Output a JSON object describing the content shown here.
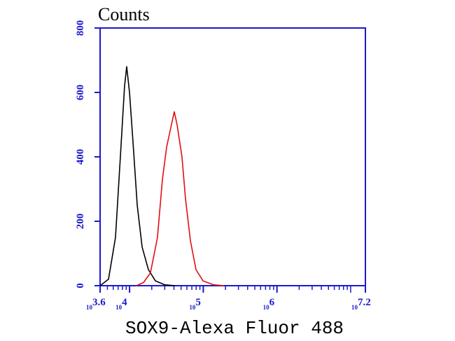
{
  "chart_data": {
    "type": "line",
    "title": "Counts",
    "x_label": "SOX9-Alexa Fluor 488",
    "xscale": "log",
    "xlim": [
      3981.07,
      15848932
    ],
    "xticks": [
      {
        "value": 3981.07,
        "base": "10",
        "exponent": "3.6"
      },
      {
        "value": 10000,
        "base": "10",
        "exponent": "4"
      },
      {
        "value": 100000,
        "base": "10",
        "exponent": "5"
      },
      {
        "value": 1000000,
        "base": "10",
        "exponent": "6"
      },
      {
        "value": 15848932,
        "base": "10",
        "exponent": "7.2"
      }
    ],
    "minor_ticks": true,
    "ylim": [
      0,
      800
    ],
    "yticks": [
      0,
      200,
      400,
      600,
      800
    ],
    "axis_color": "#1a1acc",
    "series": [
      {
        "color": "#000000",
        "x": [
          3981,
          5180,
          6440,
          7500,
          8550,
          9140,
          9980,
          11100,
          12700,
          14800,
          18000,
          22400,
          29800,
          41300
        ],
        "values": [
          0,
          20,
          150,
          400,
          620,
          680,
          600,
          450,
          250,
          120,
          50,
          15,
          3,
          0
        ]
      },
      {
        "color": "#e01010",
        "x": [
          12400,
          15500,
          19200,
          23900,
          27900,
          31800,
          37000,
          40400,
          44100,
          51400,
          57400,
          66900,
          79600,
          99100,
          137000,
          191000
        ],
        "values": [
          0,
          10,
          40,
          150,
          330,
          430,
          500,
          540,
          500,
          400,
          270,
          140,
          50,
          15,
          3,
          0
        ]
      }
    ]
  }
}
